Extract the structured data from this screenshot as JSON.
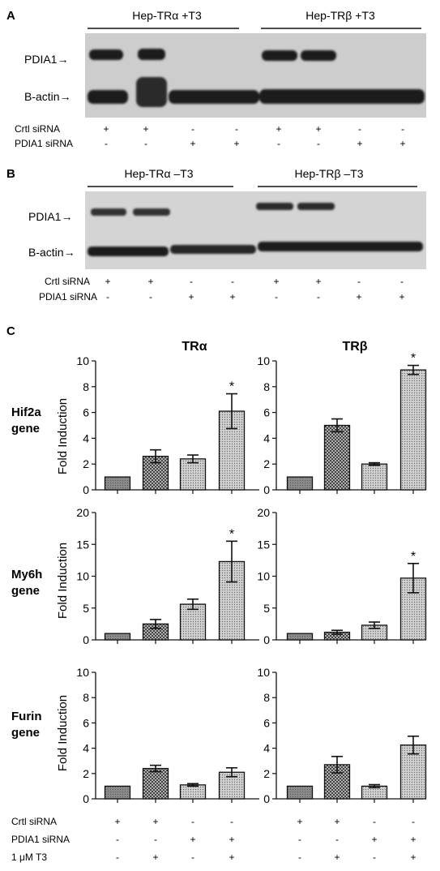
{
  "panels": {
    "A": {
      "letter": "A",
      "group1": "Hep-TRα +T3",
      "group2": "Hep-TRβ +T3",
      "band1": "PDIA1→",
      "band2": "B-actin→",
      "row1_label": "Crtl siRNA",
      "row2_label": "PDIA1 siRNA",
      "row1": [
        "+",
        "+",
        "-",
        "-",
        "+",
        "+",
        "-",
        "-"
      ],
      "row2": [
        "-",
        "-",
        "+",
        "+",
        "-",
        "-",
        "+",
        "+"
      ]
    },
    "B": {
      "letter": "B",
      "group1": "Hep-TRα –T3",
      "group2": "Hep-TRβ –T3",
      "band1": "PDIA1→",
      "band2": "B-actin→",
      "row1_label": "Crtl siRNA",
      "row2_label": "PDIA1 siRNA",
      "row1": [
        "+",
        "+",
        "-",
        "-",
        "+",
        "+",
        "-",
        "-"
      ],
      "row2": [
        "-",
        "-",
        "+",
        "+",
        "-",
        "-",
        "+",
        "+"
      ]
    },
    "C": {
      "letter": "C",
      "col_titles": [
        "TRα",
        "TRβ"
      ],
      "row_titles": [
        [
          "Hif2a",
          "gene"
        ],
        [
          "My6h",
          "gene"
        ],
        [
          "Furin",
          "gene"
        ]
      ],
      "ylabel": "Fold Induction",
      "conditions": [
        {
          "label": "Crtl siRNA",
          "values": [
            "+",
            "+",
            "-",
            "-"
          ]
        },
        {
          "label": "PDIA1 siRNA",
          "values": [
            "-",
            "-",
            "+",
            "+"
          ]
        },
        {
          "label": "1 μM T3",
          "values": [
            "-",
            "+",
            "-",
            "+"
          ]
        }
      ]
    }
  },
  "chart_data": [
    {
      "type": "bar",
      "title": "TRα",
      "gene": "Hif2a gene",
      "ylabel": "Fold Induction",
      "ylim": [
        0,
        10
      ],
      "yticks": [
        0,
        2,
        4,
        6,
        8,
        10
      ],
      "values": [
        1,
        2.6,
        2.4,
        6.1
      ],
      "errors": [
        0,
        0.5,
        0.3,
        1.35
      ],
      "significance": [
        false,
        false,
        false,
        true
      ],
      "fills": [
        "solid",
        "cross",
        "dots",
        "dots"
      ]
    },
    {
      "type": "bar",
      "title": "TRβ",
      "gene": "Hif2a gene",
      "ylabel": "Fold Induction",
      "ylim": [
        0,
        10
      ],
      "yticks": [
        0,
        2,
        4,
        6,
        8,
        10
      ],
      "values": [
        1,
        5.0,
        2.0,
        9.3
      ],
      "errors": [
        0,
        0.5,
        0.1,
        0.35
      ],
      "significance": [
        false,
        false,
        false,
        true
      ],
      "fills": [
        "solid",
        "cross",
        "dots",
        "dots"
      ]
    },
    {
      "type": "bar",
      "title": "TRα",
      "gene": "My6h gene",
      "ylabel": "Fold Induction",
      "ylim": [
        0,
        20
      ],
      "yticks": [
        0,
        5,
        10,
        15,
        20
      ],
      "values": [
        1,
        2.5,
        5.6,
        12.3
      ],
      "errors": [
        0,
        0.7,
        0.8,
        3.2
      ],
      "significance": [
        false,
        false,
        false,
        true
      ],
      "fills": [
        "solid",
        "cross",
        "dots",
        "dots"
      ]
    },
    {
      "type": "bar",
      "title": "TRβ",
      "gene": "My6h gene",
      "ylabel": "Fold Induction",
      "ylim": [
        0,
        20
      ],
      "yticks": [
        0,
        5,
        10,
        15,
        20
      ],
      "values": [
        1,
        1.2,
        2.3,
        9.7
      ],
      "errors": [
        0,
        0.3,
        0.5,
        2.3
      ],
      "significance": [
        false,
        false,
        false,
        true
      ],
      "fills": [
        "solid",
        "cross",
        "dots",
        "dots"
      ]
    },
    {
      "type": "bar",
      "title": "TRα",
      "gene": "Furin gene",
      "ylabel": "Fold Induction",
      "ylim": [
        0,
        10
      ],
      "yticks": [
        0,
        2,
        4,
        6,
        8,
        10
      ],
      "values": [
        1,
        2.4,
        1.1,
        2.1
      ],
      "errors": [
        0,
        0.25,
        0.1,
        0.35
      ],
      "significance": [
        false,
        false,
        false,
        false
      ],
      "fills": [
        "solid",
        "cross",
        "dots",
        "dots"
      ]
    },
    {
      "type": "bar",
      "title": "TRβ",
      "gene": "Furin gene",
      "ylabel": "Fold Induction",
      "ylim": [
        0,
        10
      ],
      "yticks": [
        0,
        2,
        4,
        6,
        8,
        10
      ],
      "values": [
        1,
        2.7,
        1.0,
        4.25
      ],
      "errors": [
        0,
        0.65,
        0.12,
        0.7
      ],
      "significance": [
        false,
        false,
        false,
        false
      ],
      "fills": [
        "solid",
        "cross",
        "dots",
        "dots"
      ]
    }
  ],
  "colors": {
    "blot_bg": "#cdcdcd",
    "band": "#1e1e1e",
    "bar_fill": "#b8b8b8",
    "bar_solid": "#8a8a8a",
    "axis": "#111111"
  }
}
